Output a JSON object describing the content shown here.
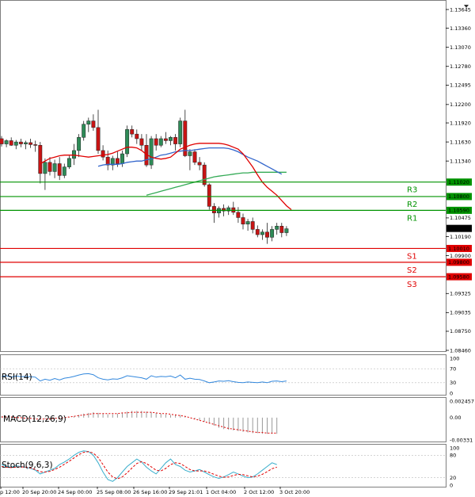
{
  "chart_data": {
    "type": "candlestick",
    "main": {
      "y_ticks": [
        "1.13645",
        "1.13360",
        "1.13070",
        "1.12780",
        "1.12495",
        "1.12200",
        "1.11920",
        "1.11630",
        "1.11340",
        "1.10475",
        "1.10190",
        "1.09900",
        "1.09325",
        "1.09035",
        "1.08750",
        "1.08460"
      ],
      "ylim": [
        1.0846,
        1.1372
      ],
      "last_price": "1.10315",
      "last_value": 1.10315,
      "levels": [
        {
          "name": "R3",
          "value": 1.1102,
          "label": "1.11020",
          "kind": "resistance"
        },
        {
          "name": "R2",
          "value": 1.108,
          "label": "1.10800",
          "kind": "resistance"
        },
        {
          "name": "R1",
          "value": 1.1059,
          "label": "1.10590",
          "kind": "resistance"
        },
        {
          "name": "S1",
          "value": 1.1001,
          "label": "1.10010",
          "kind": "support"
        },
        {
          "name": "S2",
          "value": 1.098,
          "label": "1.09800",
          "kind": "support"
        },
        {
          "name": "S3",
          "value": 1.0958,
          "label": "1.09580",
          "kind": "support"
        }
      ],
      "colors": {
        "bull": "#2e8b57",
        "bear": "#c81414",
        "resistance": "#009300",
        "support": "#e00000",
        "ma_fast": "#e00000",
        "ma_mid": "#3366cc",
        "ma_slow": "#33aa55"
      },
      "candles": [
        [
          1.1168,
          1.1172,
          1.1156,
          1.116
        ],
        [
          1.116,
          1.1167,
          1.1155,
          1.1165
        ],
        [
          1.1165,
          1.117,
          1.1157,
          1.1158
        ],
        [
          1.1158,
          1.1166,
          1.1152,
          1.1163
        ],
        [
          1.1163,
          1.1168,
          1.1155,
          1.116
        ],
        [
          1.116,
          1.1165,
          1.1152,
          1.1162
        ],
        [
          1.1162,
          1.1168,
          1.1154,
          1.1159
        ],
        [
          1.1159,
          1.1165,
          1.1148,
          1.1158
        ],
        [
          1.1158,
          1.1163,
          1.11,
          1.1115
        ],
        [
          1.1115,
          1.1138,
          1.109,
          1.1132
        ],
        [
          1.1132,
          1.114,
          1.1112,
          1.1118
        ],
        [
          1.1118,
          1.1136,
          1.1108,
          1.113
        ],
        [
          1.113,
          1.114,
          1.1105,
          1.1112
        ],
        [
          1.1112,
          1.113,
          1.1108,
          1.1125
        ],
        [
          1.1125,
          1.1142,
          1.1122,
          1.1138
        ],
        [
          1.1138,
          1.116,
          1.1128,
          1.115
        ],
        [
          1.115,
          1.1175,
          1.114,
          1.117
        ],
        [
          1.117,
          1.1195,
          1.1165,
          1.119
        ],
        [
          1.119,
          1.12,
          1.1178,
          1.1195
        ],
        [
          1.1195,
          1.1205,
          1.118,
          1.1185
        ],
        [
          1.1185,
          1.1212,
          1.1145,
          1.115
        ],
        [
          1.115,
          1.1158,
          1.1135,
          1.114
        ],
        [
          1.114,
          1.115,
          1.112,
          1.1128
        ],
        [
          1.1128,
          1.1142,
          1.112,
          1.1138
        ],
        [
          1.1138,
          1.1148,
          1.1125,
          1.113
        ],
        [
          1.113,
          1.115,
          1.1125,
          1.1145
        ],
        [
          1.1145,
          1.1188,
          1.114,
          1.1182
        ],
        [
          1.1182,
          1.1188,
          1.117,
          1.1175
        ],
        [
          1.1175,
          1.1182,
          1.116,
          1.1168
        ],
        [
          1.1168,
          1.1175,
          1.115,
          1.1158
        ],
        [
          1.1158,
          1.1175,
          1.1125,
          1.1128
        ],
        [
          1.1128,
          1.1172,
          1.1122,
          1.1168
        ],
        [
          1.1168,
          1.1175,
          1.115,
          1.1158
        ],
        [
          1.1158,
          1.1172,
          1.1155,
          1.1168
        ],
        [
          1.1168,
          1.1178,
          1.116,
          1.1165
        ],
        [
          1.1165,
          1.1172,
          1.1158,
          1.117
        ],
        [
          1.117,
          1.1175,
          1.115,
          1.116
        ],
        [
          1.116,
          1.12,
          1.1155,
          1.1195
        ],
        [
          1.1195,
          1.1212,
          1.114,
          1.1142
        ],
        [
          1.1142,
          1.1152,
          1.112,
          1.1148
        ],
        [
          1.1148,
          1.1152,
          1.1128,
          1.1132
        ],
        [
          1.1132,
          1.114,
          1.112,
          1.1128
        ],
        [
          1.1128,
          1.1132,
          1.1095,
          1.1098
        ],
        [
          1.1098,
          1.11,
          1.106,
          1.1065
        ],
        [
          1.1065,
          1.107,
          1.104,
          1.1055
        ],
        [
          1.1055,
          1.1065,
          1.1048,
          1.1062
        ],
        [
          1.1062,
          1.1068,
          1.105,
          1.1058
        ],
        [
          1.1058,
          1.1066,
          1.1052,
          1.1063
        ],
        [
          1.1063,
          1.1072,
          1.1052,
          1.1056
        ],
        [
          1.1056,
          1.1064,
          1.104,
          1.1048
        ],
        [
          1.1048,
          1.1054,
          1.103,
          1.1038
        ],
        [
          1.1038,
          1.1046,
          1.1028,
          1.1042
        ],
        [
          1.1042,
          1.1048,
          1.1024,
          1.103
        ],
        [
          1.103,
          1.1036,
          1.1018,
          1.1022
        ],
        [
          1.1022,
          1.103,
          1.1014,
          1.1026
        ],
        [
          1.1026,
          1.104,
          1.1008,
          1.1018
        ],
        [
          1.1018,
          1.1035,
          1.1012,
          1.103
        ],
        [
          1.103,
          1.104,
          1.1022,
          1.1035
        ],
        [
          1.1035,
          1.104,
          1.1018,
          1.1025
        ],
        [
          1.1025,
          1.1035,
          1.102,
          1.1031
        ]
      ],
      "ma_fast": [
        1.113,
        1.1134,
        1.1138,
        1.114,
        1.1142,
        1.1143,
        1.1143,
        1.1143,
        1.1142,
        1.1141,
        1.114,
        1.1141,
        1.1142,
        1.1143,
        1.1144,
        1.1146,
        1.1149,
        1.1152,
        1.1155,
        1.1155,
        1.1154,
        1.115,
        1.1144,
        1.114,
        1.1138,
        1.1137,
        1.1138,
        1.114,
        1.1146,
        1.1152,
        1.1155,
        1.1158,
        1.116,
        1.1161,
        1.1161,
        1.1161,
        1.1161,
        1.1161,
        1.116,
        1.1158,
        1.1155,
        1.1152,
        1.1145,
        1.1135,
        1.1125,
        1.1113,
        1.1102,
        1.1094,
        1.1088,
        1.1082,
        1.1074,
        1.1066,
        1.106
      ],
      "ma_mid": [
        1.1126,
        1.1128,
        1.1129,
        1.1129,
        1.1129,
        1.113,
        1.1132,
        1.1133,
        1.1134,
        1.1134,
        1.1136,
        1.1137,
        1.114,
        1.1143,
        1.1144,
        1.1146,
        1.1148,
        1.1149,
        1.115,
        1.115,
        1.1151,
        1.1152,
        1.1153,
        1.1154,
        1.1154,
        1.1154,
        1.1154,
        1.1153,
        1.1151,
        1.1148,
        1.1144,
        1.114,
        1.1137,
        1.1134,
        1.113,
        1.1126,
        1.1122,
        1.1118,
        1.1114
      ],
      "ma_slow": [
        1.1082,
        1.1084,
        1.1086,
        1.1088,
        1.109,
        1.1092,
        1.1094,
        1.1096,
        1.1098,
        1.11,
        1.1102,
        1.1104,
        1.1106,
        1.1108,
        1.111,
        1.1111,
        1.1112,
        1.1113,
        1.1114,
        1.1115,
        1.1116,
        1.1116,
        1.1117,
        1.1117,
        1.1117,
        1.1117,
        1.1117,
        1.1117,
        1.1117,
        1.1117
      ],
      "dates": [
        "p 12:00",
        "20 Sep 20:00",
        "24 Sep 00:00",
        "25 Sep 08:00",
        "26 Sep 16:00",
        "29 Sep 21:01",
        "1 Oct 04:00",
        "2 Oct 12:00",
        "3 Oct 20:00"
      ]
    },
    "rsi": {
      "label": "RSI(14)",
      "ticks": [
        "100",
        "70",
        "30",
        "0"
      ],
      "levels": [
        0,
        30,
        70,
        100
      ],
      "values": [
        48,
        50,
        46,
        49,
        47,
        48,
        47,
        46,
        35,
        40,
        37,
        42,
        38,
        43,
        45,
        48,
        52,
        55,
        56,
        53,
        44,
        40,
        38,
        41,
        40,
        44,
        50,
        48,
        46,
        44,
        40,
        50,
        46,
        48,
        47,
        49,
        44,
        52,
        40,
        43,
        40,
        39,
        35,
        30,
        32,
        35,
        34,
        36,
        33,
        31,
        30,
        32,
        31,
        30,
        32,
        30,
        34,
        35,
        33,
        35
      ]
    },
    "macd": {
      "label": "MACD(12,26,9)",
      "ticks": [
        "0.002457",
        "0.00",
        "-0.00331"
      ],
      "ylim": [
        -0.00331,
        0.002457
      ],
      "hist": [
        0.0002,
        0.0002,
        0.0001,
        0.0001,
        0.0,
        0.0,
        -0.0001,
        -0.0001,
        -0.0002,
        -0.0002,
        -0.0003,
        -0.0002,
        -0.0001,
        0.0,
        0.0001,
        0.0002,
        0.0004,
        0.0006,
        0.0007,
        0.0008,
        0.0007,
        0.0006,
        0.0005,
        0.0005,
        0.0006,
        0.0007,
        0.0009,
        0.001,
        0.001,
        0.001,
        0.0009,
        0.0008,
        0.0007,
        0.0006,
        0.0005,
        0.0004,
        0.0004,
        0.0004,
        0.0002,
        0.0,
        -0.0002,
        -0.0004,
        -0.0006,
        -0.0009,
        -0.0012,
        -0.0015,
        -0.0017,
        -0.0018,
        -0.0019,
        -0.002,
        -0.0021,
        -0.0022,
        -0.0023,
        -0.0023,
        -0.0024,
        -0.0024,
        -0.0024,
        -0.0024
      ],
      "signal": [
        0.0001,
        0.0001,
        0.0001,
        0.0,
        0.0,
        -0.0001,
        -0.0001,
        -0.0002,
        -0.0002,
        -0.0002,
        -0.0002,
        -0.0001,
        -0.0001,
        0.0,
        0.0001,
        0.0002,
        0.0003,
        0.0004,
        0.0005,
        0.0006,
        0.0006,
        0.0006,
        0.0006,
        0.0006,
        0.0006,
        0.0007,
        0.0007,
        0.0008,
        0.0008,
        0.0008,
        0.0008,
        0.0008,
        0.0007,
        0.0006,
        0.0006,
        0.0005,
        0.0004,
        0.0003,
        0.0002,
        0.0,
        -0.0002,
        -0.0004,
        -0.0006,
        -0.0008,
        -0.001,
        -0.0012,
        -0.0014,
        -0.0016,
        -0.0017,
        -0.0018,
        -0.0019,
        -0.002,
        -0.0021,
        -0.0022,
        -0.0022,
        -0.0023,
        -0.0023,
        -0.0023
      ]
    },
    "stoch": {
      "label": "Stoch(9,6,3)",
      "ticks": [
        "100",
        "80",
        "20",
        "0"
      ],
      "levels": [
        0,
        20,
        80,
        100
      ],
      "main": [
        55,
        50,
        48,
        52,
        50,
        48,
        45,
        40,
        30,
        35,
        40,
        45,
        55,
        62,
        70,
        80,
        88,
        92,
        90,
        80,
        60,
        35,
        15,
        10,
        20,
        35,
        50,
        60,
        70,
        62,
        48,
        38,
        30,
        45,
        60,
        70,
        55,
        50,
        40,
        35,
        38,
        42,
        35,
        28,
        22,
        18,
        22,
        28,
        35,
        30,
        24,
        20,
        22,
        30,
        40,
        50,
        60,
        55
      ],
      "signal": [
        50,
        48,
        47,
        48,
        49,
        48,
        46,
        42,
        36,
        35,
        37,
        42,
        48,
        56,
        64,
        73,
        82,
        88,
        90,
        86,
        74,
        55,
        35,
        22,
        17,
        22,
        33,
        46,
        58,
        63,
        58,
        49,
        40,
        38,
        45,
        55,
        60,
        58,
        50,
        42,
        38,
        38,
        38,
        34,
        29,
        24,
        21,
        22,
        26,
        29,
        28,
        25,
        22,
        24,
        29,
        36,
        44,
        48
      ]
    }
  }
}
